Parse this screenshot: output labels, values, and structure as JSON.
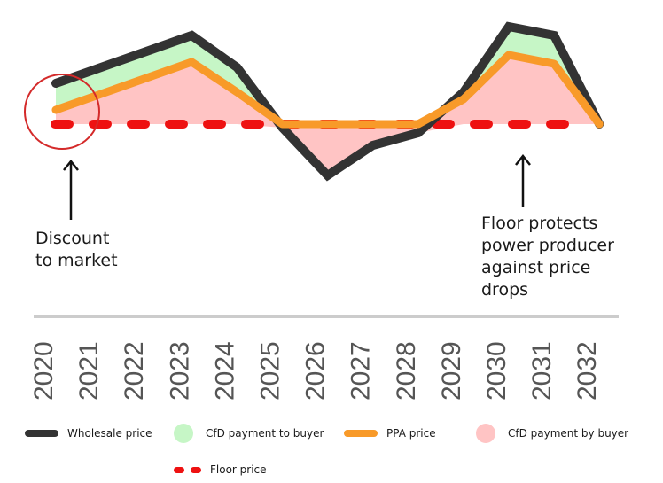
{
  "chart_data": {
    "type": "line",
    "x": [
      "2020",
      "2021",
      "2022",
      "2023",
      "2024",
      "2025",
      "2026",
      "2027",
      "2028",
      "2029",
      "2030",
      "2031",
      "2032"
    ],
    "series": [
      {
        "name": "Wholesale price",
        "values": [
          8.3,
          9.2,
          10.1,
          11.0,
          9.2,
          5.8,
          3.1,
          4.8,
          5.5,
          7.8,
          11.5,
          11.0,
          6.0
        ]
      },
      {
        "name": "PPA price",
        "values": [
          6.8,
          7.7,
          8.6,
          9.5,
          7.8,
          6.0,
          6.0,
          6.0,
          6.0,
          7.4,
          9.9,
          9.4,
          6.0
        ]
      },
      {
        "name": "Floor price",
        "values": [
          6.0,
          6.0,
          6.0,
          6.0,
          6.0,
          6.0,
          6.0,
          6.0,
          6.0,
          6.0,
          6.0,
          6.0,
          6.0
        ]
      }
    ],
    "shaded_areas": [
      {
        "name": "CfD payment to buyer",
        "color": "#c6f6c6"
      },
      {
        "name": "CfD payment by buyer",
        "color": "#ffc4c4"
      }
    ],
    "colors": {
      "wholesale": "#333333",
      "ppa": "#f89a29",
      "floor": "#ee1111",
      "axis": "#cccccc",
      "highlight_circle": "#d42a2a"
    },
    "ylim": [
      0,
      12
    ],
    "grid": false,
    "legend_position": "bottom",
    "xlabel": "",
    "ylabel": "",
    "annotations": [
      {
        "id": "discount",
        "lines": [
          "Discount",
          "to market"
        ],
        "target_x": "2020"
      },
      {
        "id": "floor",
        "lines": [
          "Floor protects",
          "power producer",
          "against price",
          "drops"
        ],
        "target_x": "2030"
      }
    ]
  },
  "legend": {
    "wholesale": "Wholesale price",
    "cfd_to_buyer": "CfD payment to buyer",
    "ppa": "PPA price",
    "cfd_by_buyer": "CfD payment by buyer",
    "floor": "Floor price"
  }
}
